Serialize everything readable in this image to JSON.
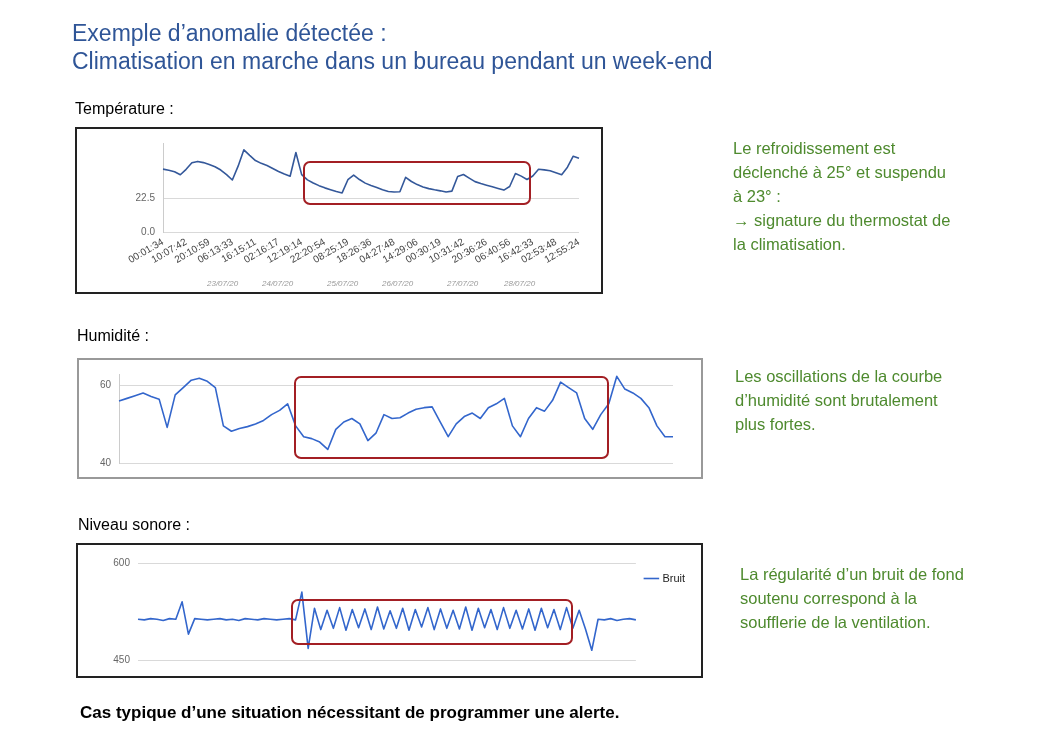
{
  "chart_data": [
    {
      "type": "line",
      "title": "Température :",
      "marker": "none",
      "grid": "y",
      "color": "#34589a",
      "categories": [
        "00:01:34",
        null,
        null,
        null,
        "10:07:42",
        null,
        null,
        null,
        "20:10:59",
        null,
        null,
        null,
        "06:13:33",
        null,
        null,
        null,
        "16:15:11",
        null,
        null,
        null,
        "02:16:17",
        null,
        null,
        null,
        "12:19:14",
        null,
        null,
        null,
        "22:20:54",
        null,
        null,
        null,
        "08:25:19",
        null,
        null,
        null,
        "18:26:36",
        null,
        null,
        null,
        "04:27:48",
        null,
        null,
        null,
        "14:29:06",
        null,
        null,
        null,
        "00:30:19",
        null,
        null,
        null,
        "10:31:42",
        null,
        null,
        null,
        "20:36:26",
        null,
        null,
        null,
        "06:40:56",
        null,
        null,
        null,
        "16:42:33",
        null,
        null,
        null,
        "02:53:48",
        null,
        null,
        null,
        "12:55:24"
      ],
      "values": [
        42.4,
        41.7,
        40.7,
        38.6,
        42.3,
        46.7,
        47.6,
        46.8,
        45.5,
        44,
        41.8,
        38.7,
        35.1,
        44.4,
        55.4,
        51.7,
        48.2,
        46.3,
        44.8,
        42.8,
        40.8,
        39.1,
        37.6,
        53.6,
        38.7,
        35.2,
        33.1,
        31.3,
        29.8,
        28.6,
        27.3,
        26.4,
        35.3,
        38.4,
        35.4,
        33,
        31.4,
        30,
        28.5,
        27.4,
        27,
        27.2,
        36.9,
        34.1,
        32,
        30.4,
        29.3,
        28.5,
        27.8,
        27,
        27.6,
        37.5,
        38.8,
        36.4,
        34,
        32.7,
        31.6,
        30.5,
        29.4,
        28.3,
        30.7,
        39.5,
        37.7,
        35.4,
        37.8,
        42.3,
        41.9,
        41.3,
        40,
        38.7,
        43.7,
        51.1,
        49.7
      ],
      "ylim": [
        0,
        60
      ],
      "yticks": [
        {
          "value": 0,
          "label": "0.0"
        },
        22.5
      ],
      "annotations": [
        "Exemple d’anomalie détectée :",
        "Climatisation en marche dans un bureau pendant un week-end",
        "Le refroidissement est déclenché à 25° et suspendu à 23° :\n→ signature du thermostat de la climatisation.",
        "23/07/20",
        "24/07/20",
        "25/07/20",
        "26/07/20",
        "27/07/20",
        "28/07/20"
      ]
    },
    {
      "type": "line",
      "title": "Humidité :",
      "marker": "none",
      "grid": "y",
      "tick_labels": "y",
      "color": "#3366cc",
      "categories": [
        null,
        null,
        null,
        null,
        null,
        null,
        null,
        null,
        null,
        null,
        null,
        null,
        null,
        null,
        null,
        null,
        null,
        null,
        null,
        null,
        null,
        null,
        null,
        null,
        null,
        null,
        null,
        null,
        null,
        null,
        null,
        null,
        null,
        null,
        null,
        null,
        null,
        null,
        null,
        null,
        null,
        null,
        null,
        null,
        null,
        null,
        null,
        null,
        null,
        null,
        null,
        null,
        null,
        null,
        null,
        null,
        null,
        null,
        null,
        null,
        null,
        null,
        null,
        null,
        null,
        null,
        null,
        null,
        null,
        null
      ],
      "values": [
        56.0,
        56.7,
        57.4,
        58.1,
        57.2,
        56.5,
        49.2,
        57.6,
        59.5,
        61.4,
        61.9,
        61.1,
        59.5,
        49.6,
        48.2,
        48.9,
        49.4,
        50.1,
        51.0,
        52.5,
        53.6,
        55.3,
        49.6,
        46.8,
        46.3,
        45.4,
        43.5,
        48.7,
        50.6,
        51.5,
        50.1,
        45.8,
        47.7,
        52.5,
        51.5,
        51.7,
        52.9,
        53.9,
        54.3,
        54.5,
        50.6,
        46.8,
        50.1,
        52.0,
        52.9,
        51.5,
        54.3,
        55.3,
        56.7,
        49.6,
        46.8,
        51.5,
        54.3,
        53.4,
        56.2,
        60.9,
        59.5,
        58.1,
        51.5,
        48.7,
        52.5,
        55.3,
        62.4,
        59.1,
        58.1,
        56.7,
        54.3,
        49.6,
        46.8,
        46.8
      ],
      "ylim": [
        40,
        63
      ],
      "yticks": [
        40,
        60
      ],
      "annotations": [
        "Les oscillations de la courbe d’humidité sont brutalement plus fortes."
      ]
    },
    {
      "type": "line",
      "title": "Niveau sonore :",
      "marker": "none",
      "grid": "y",
      "tick_labels": "y",
      "legend": "right",
      "categories": [
        null,
        null,
        null,
        null,
        null,
        null,
        null,
        null,
        null,
        null,
        null,
        null,
        null,
        null,
        null,
        null,
        null,
        null,
        null,
        null,
        null,
        null,
        null,
        null,
        null,
        null,
        null,
        null,
        null,
        null,
        null,
        null,
        null,
        null,
        null,
        null,
        null,
        null,
        null,
        null,
        null,
        null,
        null,
        null,
        null,
        null,
        null,
        null,
        null,
        null,
        null,
        null,
        null,
        null,
        null,
        null,
        null,
        null,
        null,
        null,
        null,
        null,
        null,
        null,
        null,
        null,
        null,
        null,
        null,
        null,
        null,
        null,
        null,
        null,
        null,
        null,
        null,
        null,
        null,
        null
      ],
      "series": [
        {
          "name": "Bruit",
          "color": "#3366cc",
          "values": [
            513,
            512,
            514,
            513,
            511,
            514,
            513,
            540,
            490,
            514,
            513,
            512,
            513,
            514,
            512,
            513,
            511,
            514,
            513,
            512,
            514,
            513,
            512,
            513,
            514,
            512,
            555,
            468,
            530,
            497,
            527,
            499,
            531,
            496,
            528,
            500,
            529,
            497,
            532,
            498,
            526,
            499,
            530,
            496,
            528,
            501,
            531,
            497,
            529,
            499,
            527,
            498,
            532,
            496,
            530,
            500,
            528,
            497,
            531,
            499,
            527,
            498,
            529,
            496,
            530,
            500,
            528,
            497,
            531,
            499,
            527,
            498,
            465,
            513,
            512,
            514,
            511,
            513,
            514,
            512
          ]
        }
      ],
      "ylim": [
        450,
        600
      ],
      "yticks": [
        450,
        600
      ],
      "annotations": [
        "La régularité d’un bruit de fond soutenu correspond à la soufflerie de la ventilation.",
        "Cas typique d’une situation nécessitant de programmer une alerte."
      ]
    }
  ]
}
